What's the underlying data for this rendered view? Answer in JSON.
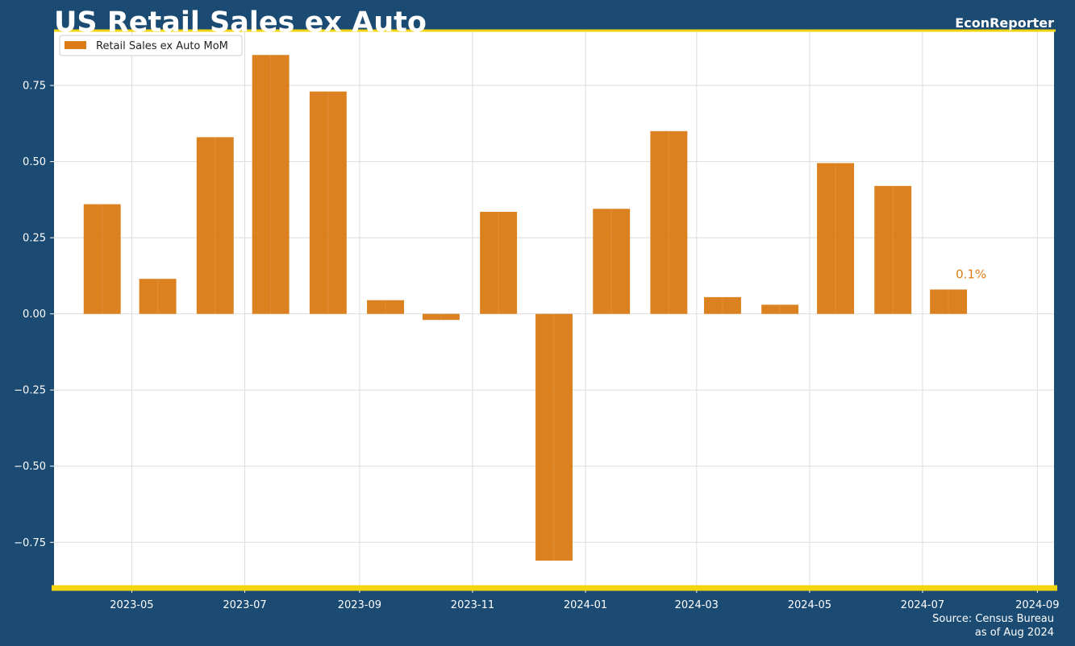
{
  "header": {
    "title": "US Retail Sales ex Auto",
    "brand": "EconReporter"
  },
  "footer": {
    "source": "Source: Census Bureau",
    "as_of": "as of Aug 2024"
  },
  "colors": {
    "background": "#1b4a72",
    "plot_background": "#ffffff",
    "bar": "#db7c16",
    "accent": "#f2d50f",
    "text": "#ffffff"
  },
  "chart_data": {
    "type": "bar",
    "title": "US Retail Sales ex Auto",
    "x_axis_type": "date",
    "legend": {
      "entries": [
        "Retail Sales ex Auto MoM"
      ],
      "placement": "top-left"
    },
    "series": [
      {
        "name": "Retail Sales ex Auto MoM",
        "color": "#db7c16",
        "points": [
          {
            "x": "2023-04-15",
            "y": 0.36
          },
          {
            "x": "2023-05-15",
            "y": 0.115
          },
          {
            "x": "2023-06-15",
            "y": 0.58
          },
          {
            "x": "2023-07-15",
            "y": 0.85
          },
          {
            "x": "2023-08-15",
            "y": 0.73
          },
          {
            "x": "2023-09-15",
            "y": 0.045
          },
          {
            "x": "2023-10-15",
            "y": -0.02
          },
          {
            "x": "2023-11-15",
            "y": 0.335
          },
          {
            "x": "2023-12-15",
            "y": -0.81
          },
          {
            "x": "2024-01-15",
            "y": 0.345
          },
          {
            "x": "2024-02-15",
            "y": 0.6
          },
          {
            "x": "2024-03-15",
            "y": 0.055
          },
          {
            "x": "2024-04-15",
            "y": 0.03
          },
          {
            "x": "2024-05-15",
            "y": 0.495
          },
          {
            "x": "2024-06-15",
            "y": 0.42
          },
          {
            "x": "2024-07-15",
            "y": 0.08
          }
        ]
      }
    ],
    "x_ticks": [
      "2023-05",
      "2023-07",
      "2023-09",
      "2023-11",
      "2024-01",
      "2024-03",
      "2024-05",
      "2024-07",
      "2024-09"
    ],
    "y_ticks": [
      "0.75",
      "0.50",
      "0.25",
      "0.00",
      "−0.25",
      "−0.50",
      "−0.75"
    ],
    "y_tick_values": [
      0.75,
      0.5,
      0.25,
      0,
      -0.25,
      -0.5,
      -0.75
    ],
    "xlim": [
      "2023-03-20",
      "2024-09-10"
    ],
    "ylim": [
      -0.9,
      0.93
    ],
    "grid": true,
    "annotation": {
      "text": "0.1%",
      "x": "2024-07-15",
      "y": 0.08
    }
  }
}
